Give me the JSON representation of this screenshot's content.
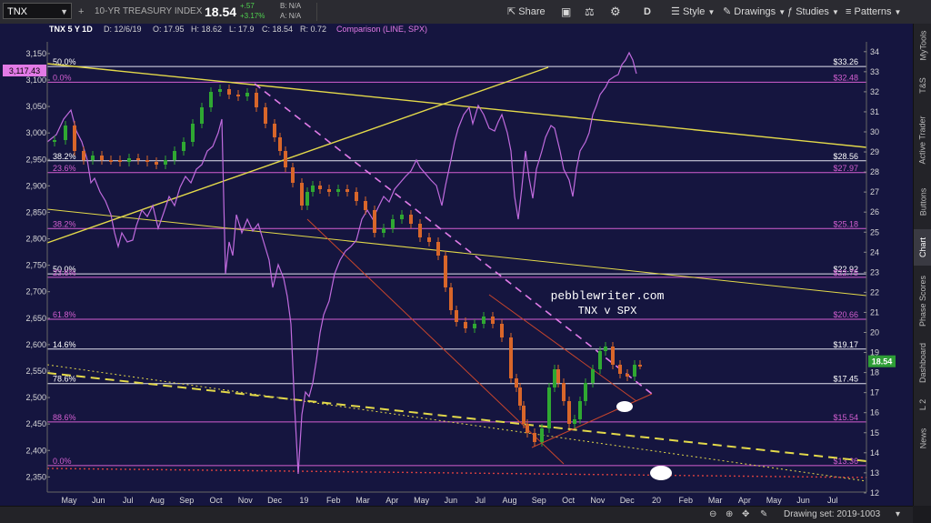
{
  "toolbar": {
    "symbol": "TNX",
    "description": "10-YR TREASURY INDEX",
    "last": "18.54",
    "change": "+.57",
    "change_pct": "+3.17%",
    "bid": "B: N/A",
    "ask": "A: N/A",
    "share": "Share",
    "period": "D",
    "style": "Style",
    "drawings": "Drawings",
    "studies": "Studies",
    "patterns": "Patterns"
  },
  "header": {
    "title": "TNX 5 Y 1D",
    "date": "D: 12/6/19",
    "open": "O: 17.95",
    "high": "H: 18.62",
    "low": "L: 17.9",
    "close": "C: 18.54",
    "range": "R: 0.72",
    "comparison": "Comparison (LINE, SPX)"
  },
  "annotation": {
    "line1": "pebblewriter.com",
    "line2": "TNX v SPX"
  },
  "right_tabs": [
    "MyTools",
    "T&S",
    "Active Trader",
    "Buttons",
    "Chart",
    "Phase Scores",
    "Dashboard",
    "L 2",
    "News"
  ],
  "status": {
    "drawing_set": "Drawing set: 2019-1003"
  },
  "colors": {
    "background": "#15153f",
    "spx_line": "#c06bde",
    "up_candle": "#2fa832",
    "down_candle": "#d8662a",
    "yellow_lines": "#e3d94a",
    "fib_magenta": "#d35fd1",
    "fib_white": "#e4e4f0",
    "channel_red": "#c8452c",
    "last_price": "#2e9e36",
    "spx_tag": "#e27ae6"
  },
  "chart_data": {
    "type": "line",
    "left_axis_ticks": [
      "3,150",
      "3,100",
      "3,050",
      "3,000",
      "2,950",
      "2,900",
      "2,850",
      "2,800",
      "2,750",
      "2,700",
      "2,650",
      "2,600",
      "2,550",
      "2,500",
      "2,450",
      "2,400",
      "2,350"
    ],
    "right_axis_ticks": [
      "34",
      "33",
      "32",
      "31",
      "30",
      "29",
      "28",
      "27",
      "26",
      "25",
      "24",
      "23",
      "22",
      "21",
      "20",
      "19",
      "18",
      "17",
      "16",
      "15",
      "14",
      "13",
      "12"
    ],
    "x_axis_ticks": [
      "May",
      "Jun",
      "Jul",
      "Aug",
      "Sep",
      "Oct",
      "Nov",
      "Dec",
      "19",
      "Feb",
      "Mar",
      "Apr",
      "May",
      "Jun",
      "Jul",
      "Aug",
      "Sep",
      "Oct",
      "Nov",
      "Dec",
      "20",
      "Feb",
      "Mar",
      "Apr",
      "May",
      "Jun",
      "Jul"
    ],
    "spx_tag": "3,117.43",
    "last_price_tag": "18.54",
    "fib_levels": [
      {
        "left": "50.0%",
        "right": "$33.26",
        "y": 33.26
      },
      {
        "left": "0.0%",
        "right": "$32.48",
        "y": 32.48
      },
      {
        "left": "38.2%",
        "right": "$28.56",
        "y": 28.56
      },
      {
        "left": "23.6%",
        "right": "$27.97",
        "y": 27.97
      },
      {
        "left": "38.2%",
        "right": "$25.18",
        "y": 25.18
      },
      {
        "left": "50.0%",
        "right": "$22.92",
        "y": 22.92
      },
      {
        "left": "23.6%",
        "right": "$22.75",
        "y": 22.75
      },
      {
        "left": "61.8%",
        "right": "$20.66",
        "y": 20.66
      },
      {
        "left": "14.6%",
        "right": "$19.17",
        "y": 19.17
      },
      {
        "left": "78.6%",
        "right": "$17.45",
        "y": 17.45
      },
      {
        "left": "88.6%",
        "right": "$15.54",
        "y": 15.54
      },
      {
        "left": "0.0%",
        "right": "$13.36",
        "y": 13.36
      }
    ]
  }
}
